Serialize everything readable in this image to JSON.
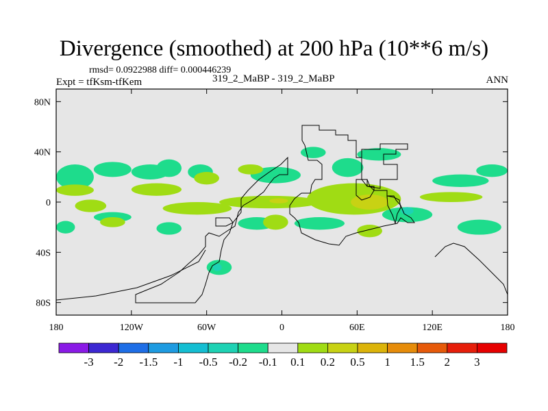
{
  "header": {
    "title": "Divergence (smoothed) at 200 hPa (10**6 m/s)",
    "stats": "rmsd= 0.0922988 diff= 0.000446239",
    "experiment": "Expt = tfKsm-tfKem",
    "case_label": "319_2_MaBP - 319_2_MaBP",
    "season": "ANN"
  },
  "chart_data": {
    "type": "heatmap",
    "title": "Divergence (smoothed) at 200 hPa (10**6 m/s)",
    "xlabel": "",
    "ylabel": "",
    "xlim": [
      -180,
      180
    ],
    "ylim": [
      -90,
      90
    ],
    "x_ticks": [
      -180,
      -120,
      -60,
      0,
      60,
      120,
      180
    ],
    "x_tick_labels": [
      "180",
      "120W",
      "60W",
      "0",
      "60E",
      "120E",
      "180"
    ],
    "y_ticks": [
      80,
      40,
      0,
      -40,
      -80
    ],
    "y_tick_labels": [
      "80N",
      "40N",
      "0",
      "40S",
      "80S"
    ],
    "colorbar": {
      "levels": [
        "-3",
        "-2",
        "-1.5",
        "-1",
        "-0.5",
        "-0.2",
        "-0.1",
        "0.1",
        "0.2",
        "0.5",
        "1",
        "1.5",
        "2",
        "3"
      ],
      "colors": [
        "#8a1ae6",
        "#3c28d2",
        "#1e6ee6",
        "#1e9be1",
        "#14bed2",
        "#1ed2b4",
        "#1edc8c",
        "#e6e6e6",
        "#a0dc14",
        "#c8d214",
        "#dcb40a",
        "#e68c0a",
        "#e65a0a",
        "#e61e0a",
        "#e60000"
      ]
    },
    "background_color": "#e6e6e6",
    "regions": [
      {
        "bin": "-0.2 to -0.1",
        "lon": [
          -180,
          -150
        ],
        "lat": [
          10,
          30
        ]
      },
      {
        "bin": "-0.2 to -0.1",
        "lon": [
          -150,
          -120
        ],
        "lat": [
          20,
          32
        ]
      },
      {
        "bin": "-0.2 to -0.1",
        "lon": [
          -120,
          -90
        ],
        "lat": [
          18,
          30
        ]
      },
      {
        "bin": "-0.2 to -0.1",
        "lon": [
          -100,
          -80
        ],
        "lat": [
          20,
          34
        ]
      },
      {
        "bin": "-0.2 to -0.1",
        "lon": [
          -75,
          -55
        ],
        "lat": [
          18,
          30
        ]
      },
      {
        "bin": "-0.2 to -0.1",
        "lon": [
          -25,
          15
        ],
        "lat": [
          15,
          28
        ]
      },
      {
        "bin": "-0.2 to -0.1",
        "lon": [
          15,
          35
        ],
        "lat": [
          35,
          44
        ]
      },
      {
        "bin": "-0.2 to -0.1",
        "lon": [
          40,
          65
        ],
        "lat": [
          20,
          35
        ]
      },
      {
        "bin": "-0.2 to -0.1",
        "lon": [
          60,
          95
        ],
        "lat": [
          33,
          43
        ]
      },
      {
        "bin": "-0.2 to -0.1",
        "lon": [
          120,
          165
        ],
        "lat": [
          12,
          22
        ]
      },
      {
        "bin": "-0.2 to -0.1",
        "lon": [
          155,
          180
        ],
        "lat": [
          20,
          30
        ]
      },
      {
        "bin": "-0.2 to -0.1",
        "lon": [
          -180,
          -165
        ],
        "lat": [
          -25,
          -15
        ]
      },
      {
        "bin": "-0.2 to -0.1",
        "lon": [
          -150,
          -120
        ],
        "lat": [
          -16,
          -8
        ]
      },
      {
        "bin": "-0.2 to -0.1",
        "lon": [
          -100,
          -80
        ],
        "lat": [
          -26,
          -16
        ]
      },
      {
        "bin": "-0.2 to -0.1",
        "lon": [
          -35,
          -5
        ],
        "lat": [
          -22,
          -12
        ]
      },
      {
        "bin": "-0.2 to -0.1",
        "lon": [
          10,
          50
        ],
        "lat": [
          -22,
          -12
        ]
      },
      {
        "bin": "-0.2 to -0.1",
        "lon": [
          80,
          120
        ],
        "lat": [
          -16,
          -4
        ]
      },
      {
        "bin": "-0.2 to -0.1",
        "lon": [
          140,
          175
        ],
        "lat": [
          -26,
          -14
        ]
      },
      {
        "bin": "-0.2 to -0.1",
        "lon": [
          -60,
          -40
        ],
        "lat": [
          -58,
          -46
        ]
      },
      {
        "bin": "-0.5 to -0.2",
        "lon": [
          95,
          105
        ],
        "lat": [
          -10,
          -4
        ]
      },
      {
        "bin": "-0.5 to -0.2",
        "lon": [
          -55,
          -48
        ],
        "lat": [
          -55,
          -49
        ]
      },
      {
        "bin": "0.1 to 0.2",
        "lon": [
          -180,
          -150
        ],
        "lat": [
          5,
          14
        ]
      },
      {
        "bin": "0.1 to 0.2",
        "lon": [
          -120,
          -80
        ],
        "lat": [
          5,
          15
        ]
      },
      {
        "bin": "0.1 to 0.2",
        "lon": [
          -95,
          -40
        ],
        "lat": [
          -10,
          0
        ]
      },
      {
        "bin": "0.1 to 0.2",
        "lon": [
          -50,
          30
        ],
        "lat": [
          -5,
          5
        ]
      },
      {
        "bin": "0.1 to 0.2",
        "lon": [
          -165,
          -140
        ],
        "lat": [
          -8,
          2
        ]
      },
      {
        "bin": "0.1 to 0.2",
        "lon": [
          -15,
          5
        ],
        "lat": [
          -22,
          -10
        ]
      },
      {
        "bin": "0.1 to 0.2",
        "lon": [
          20,
          95
        ],
        "lat": [
          -10,
          15
        ]
      },
      {
        "bin": "0.1 to 0.2",
        "lon": [
          -70,
          -50
        ],
        "lat": [
          14,
          24
        ]
      },
      {
        "bin": "0.1 to 0.2",
        "lon": [
          -145,
          -125
        ],
        "lat": [
          -20,
          -12
        ]
      },
      {
        "bin": "0.1 to 0.2",
        "lon": [
          110,
          160
        ],
        "lat": [
          0,
          8
        ]
      },
      {
        "bin": "0.1 to 0.2",
        "lon": [
          -35,
          -15
        ],
        "lat": [
          22,
          30
        ]
      },
      {
        "bin": "0.1 to 0.2",
        "lon": [
          60,
          80
        ],
        "lat": [
          -28,
          -18
        ]
      },
      {
        "bin": "0.2 to 0.5",
        "lon": [
          55,
          85
        ],
        "lat": [
          -6,
          6
        ]
      },
      {
        "bin": "0.2 to 0.5",
        "lon": [
          -10,
          5
        ],
        "lat": [
          -1,
          3
        ]
      }
    ]
  }
}
